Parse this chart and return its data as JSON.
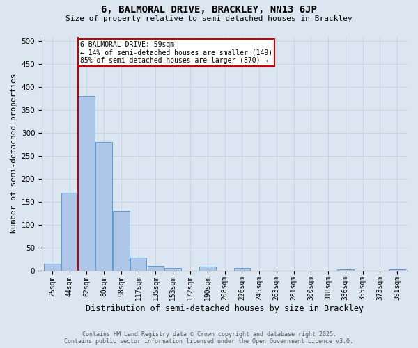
{
  "title_line1": "6, BALMORAL DRIVE, BRACKLEY, NN13 6JP",
  "title_line2": "Size of property relative to semi-detached houses in Brackley",
  "xlabel": "Distribution of semi-detached houses by size in Brackley",
  "ylabel": "Number of semi-detached properties",
  "categories": [
    "25sqm",
    "44sqm",
    "62sqm",
    "80sqm",
    "98sqm",
    "117sqm",
    "135sqm",
    "153sqm",
    "172sqm",
    "190sqm",
    "208sqm",
    "226sqm",
    "245sqm",
    "263sqm",
    "281sqm",
    "300sqm",
    "318sqm",
    "336sqm",
    "355sqm",
    "373sqm",
    "391sqm"
  ],
  "values": [
    15,
    170,
    380,
    280,
    130,
    28,
    10,
    5,
    0,
    8,
    0,
    5,
    0,
    0,
    0,
    0,
    0,
    3,
    0,
    0,
    3
  ],
  "bar_color": "#aec6e8",
  "bar_edge_color": "#5b9bd5",
  "grid_color": "#c8d4e4",
  "background_color": "#dce6f1",
  "property_line_x": 1.5,
  "annotation_text": "6 BALMORAL DRIVE: 59sqm\n← 14% of semi-detached houses are smaller (149)\n85% of semi-detached houses are larger (870) →",
  "annotation_box_color": "#ffffff",
  "annotation_box_edge_color": "#cc0000",
  "line_color": "#cc0000",
  "footer_line1": "Contains HM Land Registry data © Crown copyright and database right 2025.",
  "footer_line2": "Contains public sector information licensed under the Open Government Licence v3.0.",
  "ylim": [
    0,
    510
  ],
  "yticks": [
    0,
    50,
    100,
    150,
    200,
    250,
    300,
    350,
    400,
    450,
    500
  ]
}
